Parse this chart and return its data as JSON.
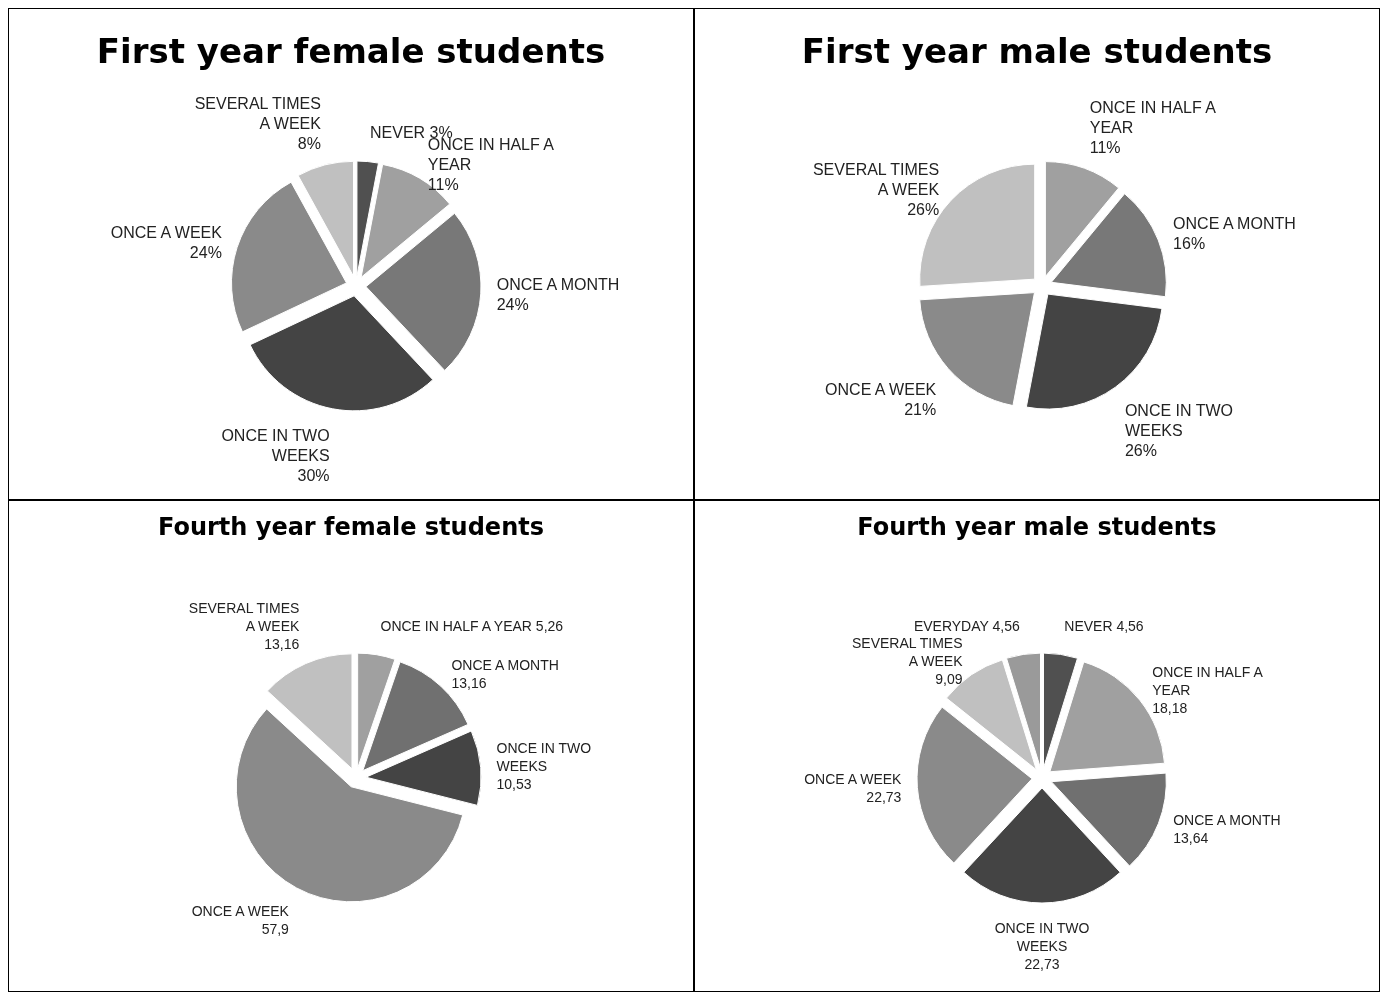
{
  "chart_data": [
    {
      "type": "pie",
      "title": "First year female students",
      "categories": [
        "NEVER",
        "ONCE IN HALF A YEAR",
        "ONCE A MONTH",
        "ONCE IN TWO WEEKS",
        "ONCE A WEEK",
        "SEVERAL TIMES A WEEK"
      ],
      "values": [
        3,
        11,
        24,
        30,
        24,
        8
      ],
      "colors": [
        "#505050",
        "#a0a0a0",
        "#787878",
        "#444444",
        "#8a8a8a",
        "#c0c0c0"
      ],
      "value_labels": [
        "3%",
        "11%",
        "24%",
        "30%",
        "24%",
        "8%"
      ]
    },
    {
      "type": "pie",
      "title": "First year male students",
      "categories": [
        "ONCE IN HALF A YEAR",
        "ONCE A MONTH",
        "ONCE IN TWO WEEKS",
        "ONCE A WEEK",
        "SEVERAL TIMES A WEEK"
      ],
      "values": [
        11,
        16,
        26,
        21,
        26
      ],
      "colors": [
        "#a0a0a0",
        "#787878",
        "#444444",
        "#8a8a8a",
        "#c0c0c0"
      ],
      "value_labels": [
        "11%",
        "16%",
        "26%",
        "21%",
        "26%"
      ]
    },
    {
      "type": "pie",
      "title": "Fourth year female students",
      "categories": [
        "ONCE IN HALF A YEAR",
        "ONCE A MONTH",
        "ONCE IN TWO WEEKS",
        "ONCE A WEEK",
        "SEVERAL TIMES A WEEK"
      ],
      "values": [
        5.26,
        13.16,
        10.53,
        57.9,
        13.16
      ],
      "colors": [
        "#a0a0a0",
        "#707070",
        "#444444",
        "#8a8a8a",
        "#c0c0c0"
      ],
      "value_labels": [
        "5,26",
        "13,16",
        "10,53",
        "57,9",
        "13,16"
      ]
    },
    {
      "type": "pie",
      "title": "Fourth year male students",
      "categories": [
        "NEVER",
        "ONCE IN HALF A YEAR",
        "ONCE A MONTH",
        "ONCE IN TWO WEEKS",
        "ONCE A WEEK",
        "SEVERAL TIMES A WEEK",
        "EVERYDAY"
      ],
      "values": [
        4.56,
        18.18,
        13.64,
        22.73,
        22.73,
        9.09,
        4.56
      ],
      "colors": [
        "#505050",
        "#a0a0a0",
        "#707070",
        "#444444",
        "#8a8a8a",
        "#c0c0c0",
        "#9a9a9a"
      ],
      "value_labels": [
        "4,56",
        "18,18",
        "13,64",
        "22,73",
        "22,73",
        "9,09",
        "4,56"
      ]
    }
  ]
}
